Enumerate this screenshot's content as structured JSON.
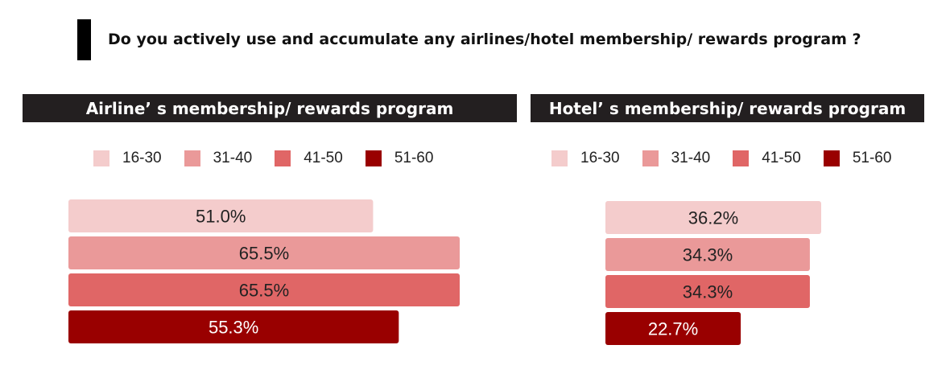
{
  "question": "Do you actively use and accumulate any airlines/hotel membership/ rewards program ?",
  "colors": {
    "16-30": "#f4cccc",
    "31-40": "#ea9999",
    "41-50": "#e06666",
    "51-60": "#990000",
    "header_bg": "#231f20"
  },
  "chart_data": [
    {
      "type": "bar",
      "orientation": "horizontal",
      "title": "Airline’ s membership/ rewards program",
      "legend": {
        "position": "top",
        "entries": [
          "16-30",
          "31-40",
          "41-50",
          "51-60"
        ]
      },
      "categories": [
        "16-30",
        "31-40",
        "41-50",
        "51-60"
      ],
      "values": [
        51.0,
        65.5,
        65.5,
        55.3
      ],
      "labels": [
        "51.0%",
        "65.5%",
        "65.5%",
        "55.3%"
      ],
      "xlim": [
        0,
        65.5
      ],
      "grid": false
    },
    {
      "type": "bar",
      "orientation": "horizontal",
      "title": "Hotel’ s membership/ rewards program",
      "legend": {
        "position": "top",
        "entries": [
          "16-30",
          "31-40",
          "41-50",
          "51-60"
        ]
      },
      "categories": [
        "16-30",
        "31-40",
        "41-50",
        "51-60"
      ],
      "values": [
        36.2,
        34.3,
        34.3,
        22.7
      ],
      "labels": [
        "36.2%",
        "34.3%",
        "34.3%",
        "22.7%"
      ],
      "xlim": [
        0,
        36.2
      ],
      "grid": false
    }
  ]
}
